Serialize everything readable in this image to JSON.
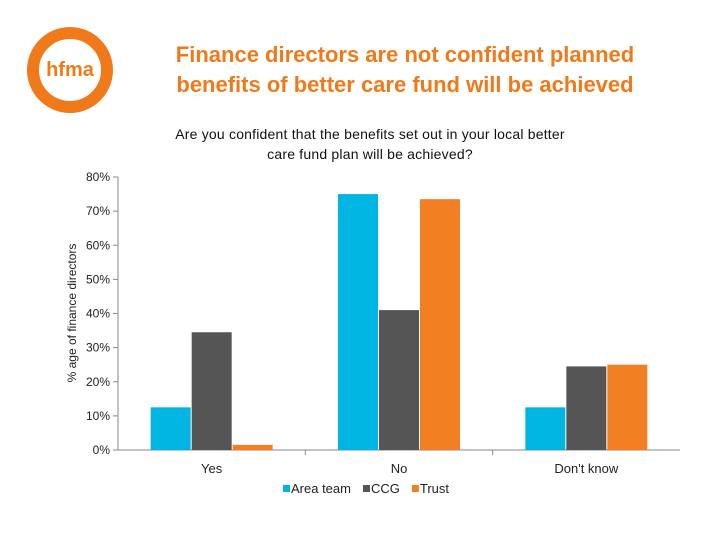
{
  "slide": {
    "logo_text": "hfma",
    "title": "Finance directors are not confident planned\nbenefits of better care fund will be achieved"
  },
  "colors": {
    "accent": "#f07a1a",
    "area_team": "#00b5e2",
    "ccg": "#555555",
    "trust": "#f28023"
  },
  "chart_data": {
    "type": "bar",
    "title": "Are you confident that the benefits set out in your local better\ncare fund plan will be achieved?",
    "xlabel": "",
    "ylabel": "% age of finance directors",
    "categories": [
      "Yes",
      "No",
      "Don't know"
    ],
    "series": [
      {
        "name": "Area team",
        "values": [
          12.5,
          75,
          12.5
        ],
        "color": "#00b5e2"
      },
      {
        "name": "CCG",
        "values": [
          34.5,
          41,
          24.5
        ],
        "color": "#555555"
      },
      {
        "name": "Trust",
        "values": [
          1.5,
          73.5,
          25
        ],
        "color": "#f28023"
      }
    ],
    "ylim": [
      0,
      80
    ],
    "yticks": [
      "0%",
      "10%",
      "20%",
      "30%",
      "40%",
      "50%",
      "60%",
      "70%",
      "80%"
    ],
    "grid": false,
    "legend_position": "bottom"
  }
}
